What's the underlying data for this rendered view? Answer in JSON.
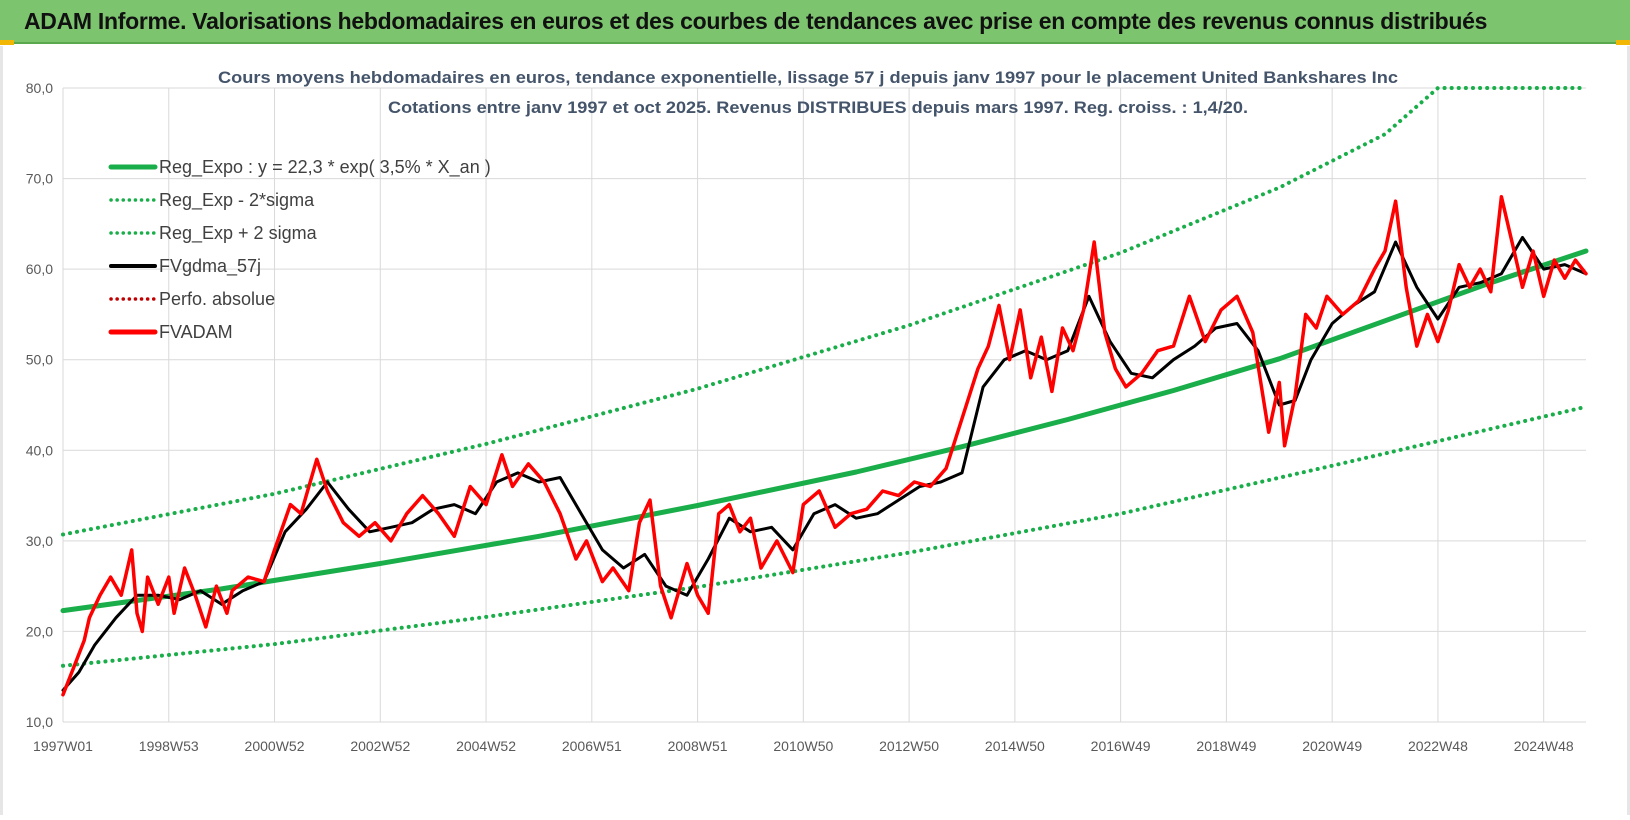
{
  "header": {
    "title": "ADAM Informe. Valorisations hebdomadaires en euros et des courbes de tendances avec prise en compte des revenus connus distribués"
  },
  "colors": {
    "header_bg": "#7dc46f",
    "trend": "#1aae4a",
    "band": "#1aae4a",
    "smooth": "#000000",
    "price": "#ff0000",
    "perf": "#c00000",
    "grid": "#d9d9d9"
  },
  "chart_data": {
    "type": "line",
    "title": "Cours moyens hebdomadaires en euros, tendance exponentielle, lissage 57 j depuis janv 1997 pour le placement United Bankshares Inc",
    "subtitle": "Cotations entre janv 1997 et oct 2025. Revenus DISTRIBUES depuis mars 1997. Reg. croiss. : 1,4/20.",
    "xlabel": "",
    "ylabel": "",
    "ylim": [
      10,
      80
    ],
    "xlim": [
      1997.0,
      2025.8
    ],
    "grid": true,
    "legend_position": "top-left",
    "y_ticks": [
      "10,0",
      "20,0",
      "30,0",
      "40,0",
      "50,0",
      "60,0",
      "70,0",
      "80,0"
    ],
    "x_tick_labels": [
      "1997W01",
      "1998W53",
      "2000W52",
      "2002W52",
      "2004W52",
      "2006W51",
      "2008W51",
      "2010W50",
      "2012W50",
      "2014W50",
      "2016W49",
      "2018W49",
      "2020W49",
      "2022W48",
      "2024W48"
    ],
    "x_tick_years": [
      1997.0,
      1999.0,
      2001.0,
      2003.0,
      2005.0,
      2007.0,
      2009.0,
      2011.0,
      2013.0,
      2015.0,
      2017.0,
      2019.0,
      2021.0,
      2023.0,
      2025.0
    ],
    "series": [
      {
        "name": "Reg_Expo : y = 22,3 * exp( 3,5% *  X_an )",
        "style": "solid-thick",
        "color": "#1aae4a",
        "x": [
          1997.0,
          2000.0,
          2003.0,
          2006.0,
          2009.0,
          2012.0,
          2014.0,
          2016.0,
          2018.0,
          2020.0,
          2022.0,
          2024.0,
          2025.8
        ],
        "y": [
          22.3,
          24.7,
          27.5,
          30.5,
          33.9,
          37.6,
          40.4,
          43.4,
          46.6,
          50.1,
          54.3,
          58.5,
          62.0
        ]
      },
      {
        "name": "Reg_Exp - 2*sigma",
        "style": "dotted",
        "color": "#1aae4a",
        "x": [
          1997.0,
          2001.0,
          2005.0,
          2009.0,
          2013.0,
          2017.0,
          2021.0,
          2025.8
        ],
        "y": [
          16.2,
          18.6,
          21.6,
          24.9,
          28.7,
          33.0,
          38.3,
          44.8
        ]
      },
      {
        "name": "Reg_Exp + 2 sigma",
        "style": "dotted",
        "color": "#1aae4a",
        "x": [
          1997.0,
          2001.0,
          2005.0,
          2009.0,
          2013.0,
          2017.0,
          2020.0,
          2022.0,
          2023.0,
          2025.8
        ],
        "y": [
          30.7,
          35.2,
          40.7,
          46.8,
          53.8,
          61.8,
          69.0,
          74.9,
          80.0,
          80.0
        ]
      },
      {
        "name": "FVgdma_57j",
        "style": "solid",
        "color": "#000000",
        "x": [
          1997.0,
          1997.3,
          1997.6,
          1998.0,
          1998.4,
          1998.8,
          1999.2,
          1999.6,
          2000.0,
          2000.4,
          2000.8,
          2001.2,
          2001.6,
          2002.0,
          2002.4,
          2002.8,
          2003.2,
          2003.6,
          2004.0,
          2004.4,
          2004.8,
          2005.2,
          2005.6,
          2006.0,
          2006.4,
          2006.8,
          2007.2,
          2007.6,
          2008.0,
          2008.4,
          2008.8,
          2009.2,
          2009.6,
          2010.0,
          2010.4,
          2010.8,
          2011.2,
          2011.6,
          2012.0,
          2012.4,
          2012.8,
          2013.2,
          2013.6,
          2014.0,
          2014.4,
          2014.8,
          2015.2,
          2015.6,
          2016.0,
          2016.4,
          2016.8,
          2017.2,
          2017.6,
          2018.0,
          2018.4,
          2018.8,
          2019.2,
          2019.6,
          2020.0,
          2020.3,
          2020.6,
          2021.0,
          2021.4,
          2021.8,
          2022.2,
          2022.6,
          2023.0,
          2023.4,
          2023.8,
          2024.2,
          2024.6,
          2025.0,
          2025.4,
          2025.8
        ],
        "y": [
          13.5,
          15.5,
          18.5,
          21.5,
          24.0,
          24.0,
          23.5,
          24.5,
          23.0,
          24.5,
          25.5,
          31.0,
          33.5,
          36.5,
          33.5,
          31.0,
          31.5,
          32.0,
          33.5,
          34.0,
          33.0,
          36.5,
          37.5,
          36.5,
          37.0,
          33.0,
          29.0,
          27.0,
          28.5,
          25.0,
          24.0,
          28.0,
          32.5,
          31.0,
          31.5,
          29.0,
          33.0,
          34.0,
          32.5,
          33.0,
          34.5,
          36.0,
          36.5,
          37.5,
          47.0,
          50.0,
          51.0,
          50.0,
          51.0,
          57.0,
          52.0,
          48.5,
          48.0,
          50.0,
          51.5,
          53.5,
          54.0,
          51.0,
          45.0,
          45.5,
          50.0,
          54.0,
          56.0,
          57.5,
          63.0,
          58.0,
          54.5,
          58.0,
          58.5,
          59.5,
          63.5,
          60.0,
          60.5,
          59.5
        ]
      },
      {
        "name": "Perfo. absolue",
        "style": "dotted",
        "color": "#c00000",
        "x": [],
        "y": []
      },
      {
        "name": "FVADAM",
        "style": "solid-thick",
        "color": "#ff0000",
        "x": [
          1997.0,
          1997.2,
          1997.4,
          1997.5,
          1997.7,
          1997.9,
          1998.1,
          1998.3,
          1998.4,
          1998.5,
          1998.6,
          1998.8,
          1999.0,
          1999.1,
          1999.3,
          1999.5,
          1999.7,
          1999.9,
          2000.1,
          2000.2,
          2000.5,
          2000.8,
          2001.0,
          2001.3,
          2001.5,
          2001.8,
          2002.0,
          2002.3,
          2002.6,
          2002.9,
          2003.2,
          2003.5,
          2003.8,
          2004.1,
          2004.4,
          2004.7,
          2005.0,
          2005.3,
          2005.5,
          2005.8,
          2006.1,
          2006.4,
          2006.7,
          2006.9,
          2007.2,
          2007.4,
          2007.7,
          2007.9,
          2008.1,
          2008.3,
          2008.5,
          2008.8,
          2009.0,
          2009.2,
          2009.4,
          2009.6,
          2009.8,
          2010.0,
          2010.2,
          2010.5,
          2010.8,
          2011.0,
          2011.3,
          2011.6,
          2011.9,
          2012.2,
          2012.5,
          2012.8,
          2013.1,
          2013.4,
          2013.7,
          2014.0,
          2014.3,
          2014.5,
          2014.7,
          2014.9,
          2015.1,
          2015.3,
          2015.5,
          2015.7,
          2015.9,
          2016.1,
          2016.3,
          2016.5,
          2016.7,
          2016.9,
          2017.1,
          2017.4,
          2017.7,
          2018.0,
          2018.3,
          2018.6,
          2018.9,
          2019.2,
          2019.5,
          2019.8,
          2020.0,
          2020.1,
          2020.3,
          2020.5,
          2020.7,
          2020.9,
          2021.2,
          2021.5,
          2021.8,
          2022.0,
          2022.2,
          2022.4,
          2022.6,
          2022.8,
          2023.0,
          2023.2,
          2023.4,
          2023.6,
          2023.8,
          2024.0,
          2024.2,
          2024.4,
          2024.6,
          2024.8,
          2025.0,
          2025.2,
          2025.4,
          2025.6,
          2025.8
        ],
        "y": [
          13.0,
          16.0,
          19.0,
          21.5,
          24.0,
          26.0,
          24.0,
          29.0,
          22.0,
          20.0,
          26.0,
          23.0,
          26.0,
          22.0,
          27.0,
          24.0,
          20.5,
          25.0,
          22.0,
          24.5,
          26.0,
          25.5,
          29.0,
          34.0,
          33.0,
          39.0,
          35.5,
          32.0,
          30.5,
          32.0,
          30.0,
          33.0,
          35.0,
          33.0,
          30.5,
          36.0,
          34.0,
          39.5,
          36.0,
          38.5,
          36.5,
          33.0,
          28.0,
          30.0,
          25.5,
          27.0,
          24.5,
          32.0,
          34.5,
          25.0,
          21.5,
          27.5,
          24.0,
          22.0,
          33.0,
          34.0,
          31.0,
          32.5,
          27.0,
          30.0,
          26.5,
          34.0,
          35.5,
          31.5,
          33.0,
          33.5,
          35.5,
          35.0,
          36.5,
          36.0,
          38.0,
          43.5,
          49.0,
          51.5,
          56.0,
          50.0,
          55.5,
          48.0,
          52.5,
          46.5,
          53.5,
          51.0,
          55.5,
          63.0,
          53.0,
          49.0,
          47.0,
          48.5,
          51.0,
          51.5,
          57.0,
          52.0,
          55.5,
          57.0,
          53.0,
          42.0,
          47.5,
          40.5,
          46.0,
          55.0,
          53.5,
          57.0,
          55.0,
          56.5,
          60.0,
          62.0,
          67.5,
          58.0,
          51.5,
          55.0,
          52.0,
          55.5,
          60.5,
          58.0,
          60.0,
          57.5,
          68.0,
          63.0,
          58.0,
          62.0,
          57.0,
          61.0,
          59.0,
          61.0,
          59.5
        ]
      }
    ]
  }
}
